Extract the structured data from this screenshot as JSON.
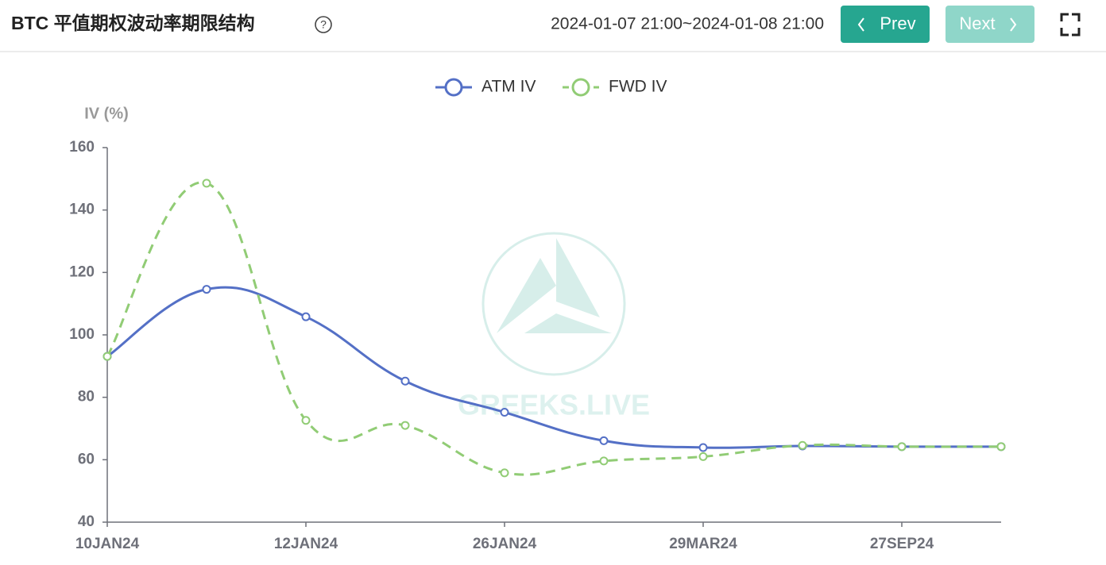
{
  "header": {
    "title": "BTC 平值期权波动率期限结构",
    "help": "?",
    "range": "2024-01-07 21:00~2024-01-08 21:00",
    "prev": "Prev",
    "next": "Next"
  },
  "watermark": "GREEKS.LIVE",
  "chart_data": {
    "type": "line",
    "y_label": "IV (%)",
    "categories": [
      "10JAN24",
      null,
      "12JAN24",
      null,
      "26JAN24",
      null,
      "29MAR24",
      null,
      "27SEP24",
      null
    ],
    "series": [
      {
        "name": "ATM IV",
        "color": "#5470c6",
        "dashed": false,
        "values": [
          93.1,
          114.6,
          105.8,
          85.2,
          75.2,
          66.1,
          63.9,
          64.4,
          64.2,
          64.2
        ]
      },
      {
        "name": "FWD IV",
        "color": "#91cc75",
        "dashed": true,
        "values": [
          93.1,
          148.6,
          72.6,
          71.0,
          55.8,
          59.6,
          61.0,
          64.6,
          64.2,
          64.2
        ]
      }
    ],
    "ylim": [
      40,
      160
    ],
    "yticks": [
      40,
      60,
      80,
      100,
      120,
      140,
      160
    ],
    "smooth": true,
    "grid": false
  }
}
